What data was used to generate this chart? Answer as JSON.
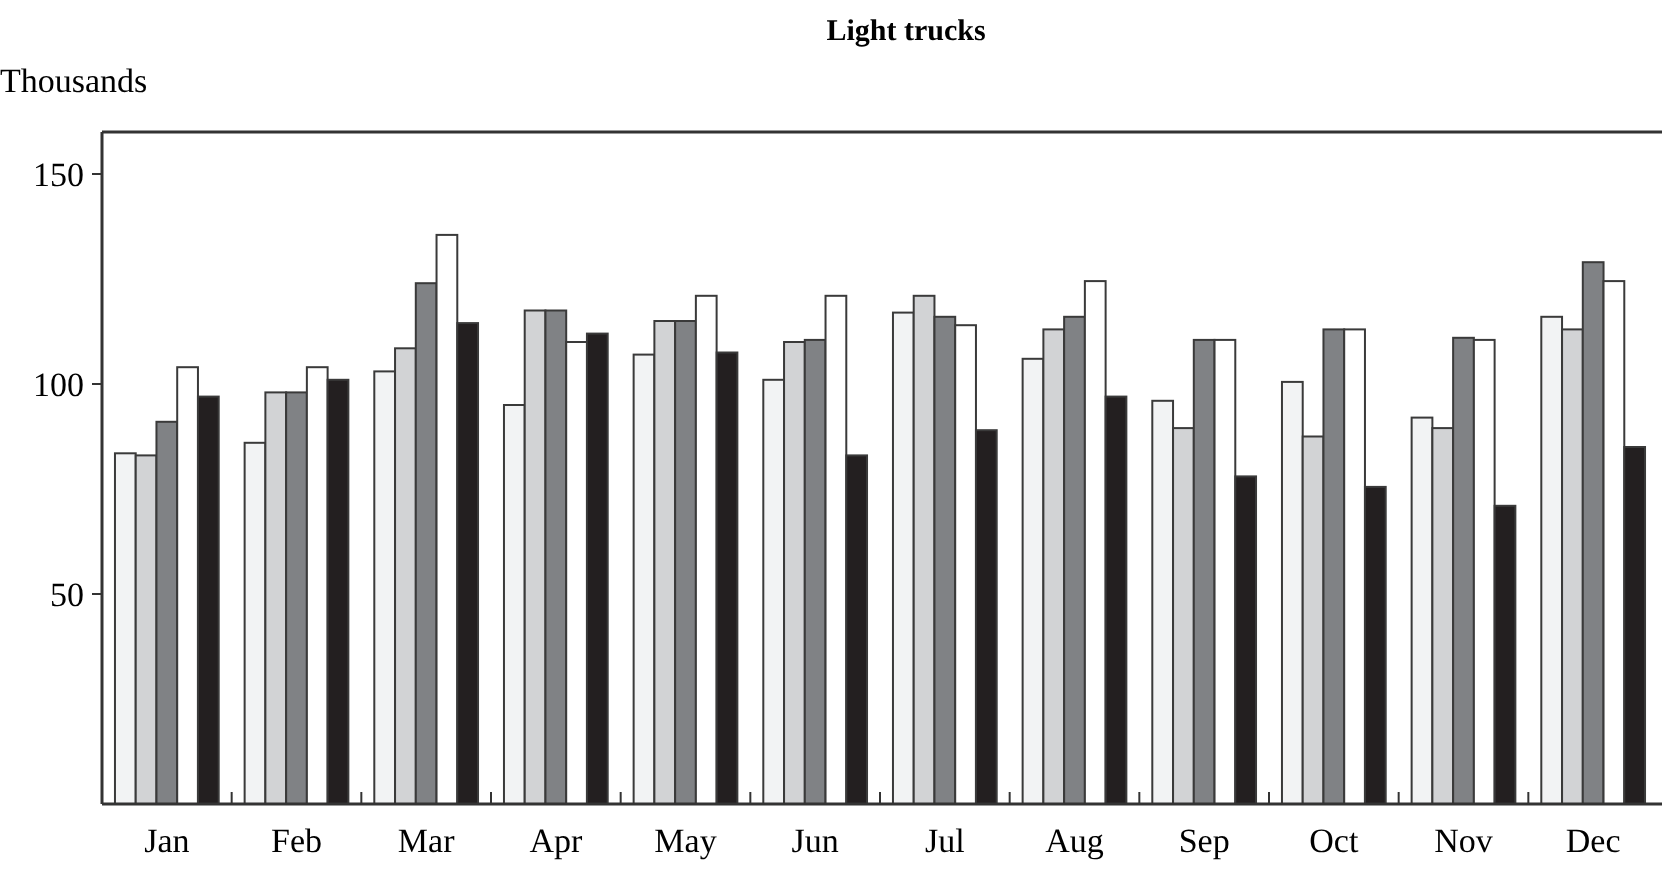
{
  "chart_data": {
    "type": "bar",
    "title": "Light trucks",
    "ylabel": "Thousands",
    "categories": [
      "Jan",
      "Feb",
      "Mar",
      "Apr",
      "May",
      "Jun",
      "Jul",
      "Aug",
      "Sep",
      "Oct",
      "Nov",
      "Dec"
    ],
    "series": [
      {
        "color": "#f2f3f4",
        "values": [
          83.5,
          86,
          103,
          95,
          107,
          101,
          117,
          106,
          96,
          100.5,
          92,
          116
        ]
      },
      {
        "color": "#d2d3d5",
        "values": [
          83,
          98,
          108.5,
          117.5,
          115,
          110,
          121,
          113,
          89.5,
          87.5,
          89.5,
          113
        ]
      },
      {
        "color": "#808285",
        "values": [
          91,
          98,
          124,
          117.5,
          115,
          110.5,
          116,
          116,
          110.5,
          113,
          111,
          129
        ]
      },
      {
        "color": "#ffffff",
        "values": [
          104,
          104,
          135.5,
          110,
          121,
          121,
          114,
          124.5,
          110.5,
          113,
          110.5,
          124.5
        ]
      },
      {
        "color": "#231f20",
        "values": [
          97,
          101,
          114.5,
          112,
          107.5,
          83,
          89,
          97,
          78,
          75.5,
          71,
          85
        ]
      }
    ],
    "ylim": [
      0,
      160
    ],
    "yticks": [
      50,
      100,
      150
    ],
    "grid": false
  }
}
